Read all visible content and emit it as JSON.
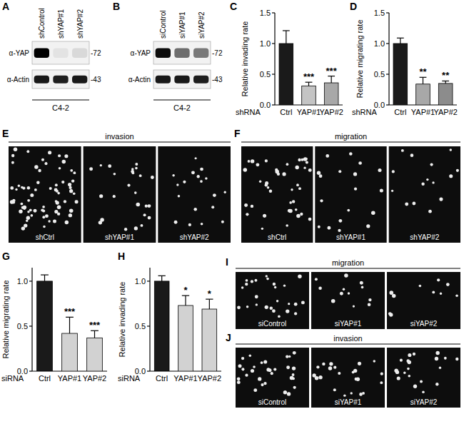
{
  "chart_data": [
    {
      "type": "bar",
      "panel": "C",
      "y_label": "Relative invading rate",
      "x_label": "shRNA",
      "categories": [
        "Ctrl",
        "YAP#1",
        "YAP#2"
      ],
      "values": [
        1.0,
        0.31,
        0.36
      ],
      "errors": [
        0.21,
        0.06,
        0.11
      ],
      "significance": [
        null,
        "***",
        "***"
      ],
      "colors": [
        "#1a1a1a",
        "#c4c4c4",
        "#a8a8a8"
      ],
      "ylim": [
        0,
        1.5
      ],
      "yticks": [
        {
          "value": 0,
          "label": "0.0"
        },
        0.5,
        {
          "value": 1,
          "label": "1.0"
        },
        1.5
      ],
      "grid": false
    },
    {
      "type": "bar",
      "panel": "D",
      "y_label": "Relative migrating rate",
      "x_label": "shRNA",
      "categories": [
        "Ctrl",
        "YAP#1",
        "YAP#2"
      ],
      "values": [
        1.0,
        0.34,
        0.35
      ],
      "errors": [
        0.09,
        0.11,
        0.04
      ],
      "significance": [
        null,
        "**",
        "**"
      ],
      "colors": [
        "#1a1a1a",
        "#a8a8a8",
        "#8c8c8c"
      ],
      "ylim": [
        0,
        1.5
      ],
      "yticks": [
        {
          "value": 0,
          "label": "0.0"
        },
        0.5,
        {
          "value": 1,
          "label": "1.0"
        },
        1.5
      ],
      "grid": false
    },
    {
      "type": "bar",
      "panel": "G",
      "y_label": "Relative migrating rate",
      "x_label": "siRNA",
      "categories": [
        "Ctrl",
        "YAP#1",
        "YAP#2"
      ],
      "values": [
        1.0,
        0.42,
        0.37
      ],
      "errors": [
        0.07,
        0.18,
        0.08
      ],
      "significance": [
        null,
        "***",
        "***"
      ],
      "colors": [
        "#1a1a1a",
        "#d2d2d2",
        "#d2d2d2"
      ],
      "ylim": [
        0,
        1.15
      ],
      "yticks": [
        {
          "value": 0,
          "label": "0.0"
        },
        0.5,
        {
          "value": 1,
          "label": "1.0"
        }
      ],
      "grid": false
    },
    {
      "type": "bar",
      "panel": "H",
      "y_label": "Relative invading rate",
      "x_label": "siRNA",
      "categories": [
        "Ctrl",
        "YAP#1",
        "YAP#2"
      ],
      "values": [
        1.0,
        0.73,
        0.69
      ],
      "errors": [
        0.06,
        0.11,
        0.11
      ],
      "significance": [
        null,
        "*",
        "*"
      ],
      "colors": [
        "#1a1a1a",
        "#d2d2d2",
        "#d2d2d2"
      ],
      "ylim": [
        0,
        1.15
      ],
      "yticks": [
        {
          "value": 0,
          "label": "0.0"
        },
        0.5,
        {
          "value": 1,
          "label": "1.0"
        }
      ],
      "grid": false
    }
  ],
  "blots": [
    {
      "panel": "A",
      "lanes": [
        "shControl",
        "shYAP#1",
        "shYAP#2"
      ],
      "cell_line": "C4-2",
      "rows": [
        {
          "label": "α-YAP",
          "size": "-72",
          "bands": [
            1.0,
            0.06,
            0.1
          ]
        },
        {
          "label": "α-Actin",
          "size": "-43",
          "bands": [
            0.9,
            0.88,
            0.9
          ]
        }
      ]
    },
    {
      "panel": "B",
      "lanes": [
        "siControl",
        "siYAP#1",
        "siYAP#2"
      ],
      "cell_line": "C4-2",
      "rows": [
        {
          "label": "α-YAP",
          "size": "-72",
          "bands": [
            0.95,
            0.55,
            0.5
          ]
        },
        {
          "label": "α-Actin",
          "size": "-43",
          "bands": [
            0.9,
            0.9,
            0.88
          ]
        }
      ]
    }
  ],
  "micrographs": [
    {
      "panel": "E",
      "title": "invasion",
      "fields": [
        {
          "label": "shCtrl",
          "cells": 70
        },
        {
          "label": "shYAP#1",
          "cells": 25
        },
        {
          "label": "shYAP#2",
          "cells": 18
        }
      ]
    },
    {
      "panel": "F",
      "title": "migration",
      "fields": [
        {
          "label": "shCtrl",
          "cells": 40
        },
        {
          "label": "shYAP#1",
          "cells": 18
        },
        {
          "label": "shYAP#2",
          "cells": 15
        }
      ]
    },
    {
      "panel": "I",
      "title": "migration",
      "fields": [
        {
          "label": "siControl",
          "cells": 25
        },
        {
          "label": "siYAP#1",
          "cells": 12
        },
        {
          "label": "siYAP#2",
          "cells": 10
        }
      ]
    },
    {
      "panel": "J",
      "title": "invasion",
      "fields": [
        {
          "label": "siControl",
          "cells": 30
        },
        {
          "label": "siYAP#1",
          "cells": 22
        },
        {
          "label": "siYAP#2",
          "cells": 20
        }
      ]
    }
  ]
}
